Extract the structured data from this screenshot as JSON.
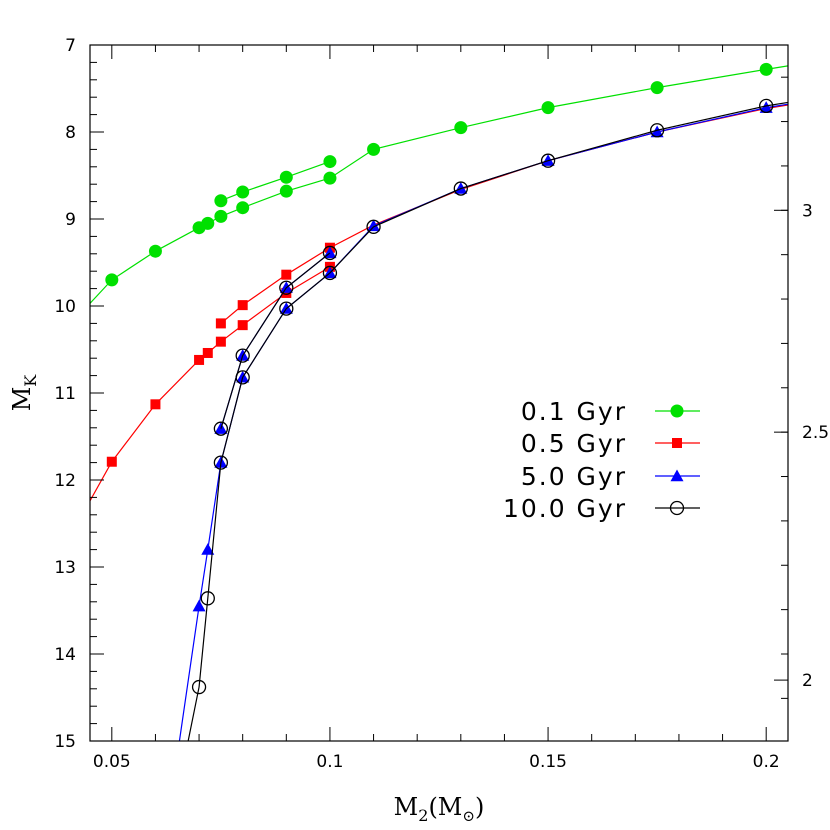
{
  "chart_data": {
    "type": "line",
    "title": "",
    "xlabel": "M2(M☉)",
    "xlabel_main": "M",
    "xlabel_sub": "2",
    "xlabel_paren_open": "(M",
    "xlabel_sun": "⊙",
    "xlabel_paren_close": ")",
    "ylabel": "MK",
    "ylabel_main": "M",
    "ylabel_sub": "K",
    "xlim": [
      0.045,
      0.205
    ],
    "ylim": [
      15,
      7
    ],
    "y_inverted": true,
    "grid": false,
    "legend_position": "center-right",
    "x_ticks": [
      "0.05",
      "0.1",
      "0.15",
      "0.2"
    ],
    "x_tick_values": [
      0.05,
      0.1,
      0.15,
      0.2
    ],
    "y_ticks": [
      "7",
      "8",
      "9",
      "10",
      "11",
      "12",
      "13",
      "14",
      "15"
    ],
    "y_tick_values": [
      7,
      8,
      9,
      10,
      11,
      12,
      13,
      14,
      15
    ],
    "right_axis": {
      "ticks": [
        "3",
        "2.5",
        "2"
      ],
      "tick_values_in_MK": [
        8.9,
        11.45,
        14.3
      ]
    },
    "series": [
      {
        "name": "0.1 Gyr",
        "color": "#00e000",
        "marker": "filled-circle",
        "branches": [
          {
            "x": [
              0.045,
              0.05,
              0.06,
              0.07,
              0.072,
              0.075,
              0.08,
              0.09,
              0.1,
              0.11,
              0.13,
              0.15,
              0.175,
              0.2,
              0.205
            ],
            "y": [
              9.97,
              9.7,
              9.37,
              9.1,
              9.05,
              8.97,
              8.87,
              8.68,
              8.53,
              8.2,
              7.95,
              7.72,
              7.49,
              7.28,
              7.24
            ]
          },
          {
            "x": [
              0.075,
              0.08,
              0.09,
              0.1
            ],
            "y": [
              8.79,
              8.69,
              8.52,
              8.34
            ]
          }
        ],
        "markers": {
          "x": [
            0.05,
            0.06,
            0.07,
            0.072,
            0.075,
            0.075,
            0.08,
            0.08,
            0.09,
            0.09,
            0.1,
            0.1,
            0.11,
            0.13,
            0.15,
            0.175,
            0.2
          ],
          "y": [
            9.7,
            9.37,
            9.1,
            9.05,
            8.97,
            8.79,
            8.87,
            8.69,
            8.68,
            8.52,
            8.53,
            8.34,
            8.2,
            7.95,
            7.72,
            7.49,
            7.28
          ]
        }
      },
      {
        "name": "0.5 Gyr",
        "color": "#ff0000",
        "marker": "filled-square",
        "branches": [
          {
            "x": [
              0.045,
              0.05,
              0.06,
              0.07,
              0.072,
              0.075,
              0.08,
              0.09,
              0.1
            ],
            "y": [
              12.24,
              11.79,
              11.13,
              10.62,
              10.54,
              10.41,
              10.22,
              9.85,
              9.55
            ]
          },
          {
            "x": [
              0.075,
              0.08,
              0.09,
              0.1,
              0.11,
              0.13,
              0.15,
              0.175,
              0.2,
              0.205
            ],
            "y": [
              10.2,
              9.99,
              9.64,
              9.33,
              9.07,
              8.66,
              8.33,
              8.0,
              7.73,
              7.69
            ]
          }
        ],
        "markers": {
          "x": [
            0.05,
            0.06,
            0.07,
            0.072,
            0.075,
            0.075,
            0.08,
            0.08,
            0.09,
            0.09,
            0.1,
            0.1
          ],
          "y": [
            11.79,
            11.13,
            10.62,
            10.54,
            10.41,
            10.2,
            10.22,
            9.99,
            9.85,
            9.64,
            9.55,
            9.33
          ]
        }
      },
      {
        "name": "5.0 Gyr",
        "color": "#0000ff",
        "marker": "filled-triangle",
        "branches": [
          {
            "x": [
              0.0655,
              0.07,
              0.072,
              0.075,
              0.08,
              0.09,
              0.1,
              0.11,
              0.13,
              0.15,
              0.175,
              0.2,
              0.205
            ],
            "y": [
              15.0,
              13.45,
              12.8,
              11.8,
              10.82,
              10.03,
              9.62,
              9.08,
              8.65,
              8.33,
              8.0,
              7.72,
              7.68
            ]
          },
          {
            "x": [
              0.075,
              0.08,
              0.09,
              0.1
            ],
            "y": [
              11.41,
              10.57,
              9.79,
              9.39
            ]
          }
        ],
        "markers": {
          "x": [
            0.07,
            0.072,
            0.075,
            0.075,
            0.08,
            0.08,
            0.09,
            0.09,
            0.1,
            0.1,
            0.11,
            0.13,
            0.15,
            0.175,
            0.2
          ],
          "y": [
            13.45,
            12.8,
            11.8,
            11.41,
            10.82,
            10.57,
            10.03,
            9.79,
            9.62,
            9.39,
            9.08,
            8.65,
            8.33,
            8.0,
            7.72
          ]
        }
      },
      {
        "name": "10.0 Gyr",
        "color": "#000000",
        "marker": "open-circle",
        "branches": [
          {
            "x": [
              0.0675,
              0.07,
              0.072,
              0.075,
              0.08,
              0.09,
              0.1,
              0.11,
              0.13,
              0.15,
              0.175,
              0.2,
              0.205
            ],
            "y": [
              15.0,
              14.38,
              13.36,
              11.8,
              10.82,
              10.03,
              9.62,
              9.09,
              8.65,
              8.33,
              7.98,
              7.7,
              7.66
            ]
          },
          {
            "x": [
              0.075,
              0.08,
              0.09,
              0.1
            ],
            "y": [
              11.41,
              10.57,
              9.79,
              9.39
            ]
          }
        ],
        "markers": {
          "x": [
            0.07,
            0.072,
            0.075,
            0.075,
            0.08,
            0.08,
            0.09,
            0.09,
            0.1,
            0.1,
            0.11,
            0.13,
            0.15,
            0.175,
            0.2
          ],
          "y": [
            14.38,
            13.36,
            11.8,
            11.41,
            10.82,
            10.57,
            10.03,
            9.79,
            9.62,
            9.39,
            9.09,
            8.65,
            8.33,
            7.98,
            7.7
          ]
        }
      }
    ]
  }
}
